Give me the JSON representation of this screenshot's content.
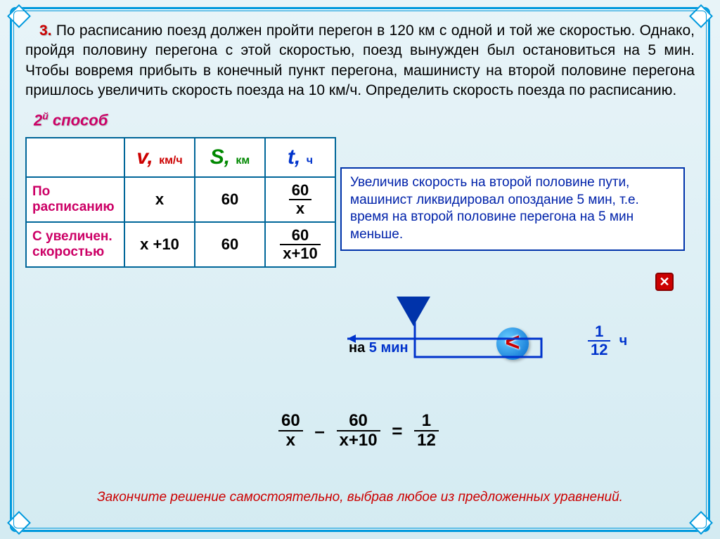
{
  "problem": {
    "number": "3.",
    "text": "По расписанию поезд должен пройти перегон в 120 км с одной и той же скоростью. Однако, пройдя половину перегона с этой скоростью, поезд вынужден был остановиться на 5 мин. Чтобы вовремя прибыть в конечный пункт перегона, машинисту на второй половине перегона пришлось увеличить скорость поезда на 10 км/ч. Определить скорость поезда по расписанию."
  },
  "method_label": "2<sup>й</sup> способ",
  "hint": "Увеличив скорость на второй половине пути, машинист ликвидировал опоздание 5 мин, т.е. время на второй половине перегона на 5 мин меньше.",
  "table": {
    "headers": {
      "v": {
        "symbol": "v,",
        "unit": "км/ч",
        "color": "#cc0000"
      },
      "s": {
        "symbol": "S,",
        "unit": "км",
        "color": "#008800"
      },
      "t": {
        "symbol": "t,",
        "unit": "ч",
        "color": "#0033cc"
      }
    },
    "rows": [
      {
        "label": "По расписанию",
        "v": "x",
        "s": "60",
        "t_num": "60",
        "t_den": "x"
      },
      {
        "label": "С увеличен. скоростью",
        "v": "x +10",
        "s": "60",
        "t_num": "60",
        "t_den": "x+10"
      }
    ]
  },
  "annotation": {
    "prefix": "на",
    "value": "5 мин"
  },
  "compare_symbol": "<",
  "hour_frac": {
    "num": "1",
    "den": "12",
    "unit": "ч"
  },
  "equation": {
    "term1": {
      "num": "60",
      "den": "x"
    },
    "op1": "–",
    "term2": {
      "num": "60",
      "den": "x+10"
    },
    "op2": "=",
    "term3": {
      "num": "1",
      "den": "12"
    }
  },
  "footer": "Закончите решение самостоятельно, выбрав любое из предложенных уравнений.",
  "close_icon": "✕",
  "colors": {
    "frame": "#0099dd",
    "accent_red": "#cc0000",
    "accent_magenta": "#cc0066",
    "accent_blue": "#0033cc",
    "accent_green": "#008800"
  }
}
